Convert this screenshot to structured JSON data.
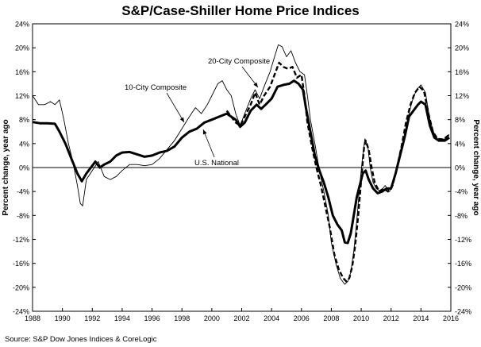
{
  "chart_data": {
    "type": "line",
    "title": "S&P/Case-Shiller Home Price Indices",
    "ylabel_left": "Percent change, year ago",
    "ylabel_right": "Percent change, year ago",
    "source": "Source: S&P Dow Jones Indices & CoreLogic",
    "xlim": [
      1988,
      2016
    ],
    "ylim": [
      -24,
      24
    ],
    "x_ticks": [
      "1988",
      "1990",
      "1992",
      "1994",
      "1996",
      "1998",
      "2000",
      "2002",
      "2004",
      "2006",
      "2008",
      "2010",
      "2012",
      "2014",
      "2016"
    ],
    "y_ticks": [
      "24%",
      "20%",
      "16%",
      "12%",
      "8%",
      "4%",
      "0%",
      "-4%",
      "-8%",
      "-12%",
      "-16%",
      "-20%",
      "-24%"
    ],
    "grid": false,
    "zero_line": true,
    "series": [
      {
        "name": "10-City Composite",
        "style": "thin",
        "color": "#000000",
        "points": [
          [
            1988.0,
            12.0
          ],
          [
            1988.4,
            10.5
          ],
          [
            1988.8,
            10.5
          ],
          [
            1989.2,
            11.0
          ],
          [
            1989.5,
            10.5
          ],
          [
            1989.8,
            11.3
          ],
          [
            1990.1,
            8.0
          ],
          [
            1990.4,
            4.0
          ],
          [
            1990.7,
            1.0
          ],
          [
            1991.0,
            -3.0
          ],
          [
            1991.2,
            -6.0
          ],
          [
            1991.35,
            -6.4
          ],
          [
            1991.6,
            -2.0
          ],
          [
            1992.0,
            -0.5
          ],
          [
            1992.4,
            1.0
          ],
          [
            1992.8,
            -1.5
          ],
          [
            1993.2,
            -2.0
          ],
          [
            1993.6,
            -1.5
          ],
          [
            1994.0,
            -0.5
          ],
          [
            1994.5,
            0.5
          ],
          [
            1995.0,
            0.5
          ],
          [
            1995.5,
            0.3
          ],
          [
            1996.0,
            0.5
          ],
          [
            1996.5,
            1.5
          ],
          [
            1997.0,
            3.0
          ],
          [
            1997.5,
            4.5
          ],
          [
            1998.0,
            6.5
          ],
          [
            1998.5,
            8.5
          ],
          [
            1998.9,
            10.0
          ],
          [
            1999.3,
            9.0
          ],
          [
            1999.7,
            10.5
          ],
          [
            2000.0,
            12.0
          ],
          [
            2000.4,
            14.0
          ],
          [
            2000.7,
            14.5
          ],
          [
            2001.0,
            13.0
          ],
          [
            2001.3,
            12.0
          ],
          [
            2001.6,
            9.0
          ],
          [
            2001.9,
            7.0
          ],
          [
            2002.2,
            9.0
          ],
          [
            2002.6,
            11.5
          ],
          [
            2002.9,
            13.0
          ],
          [
            2003.2,
            11.5
          ],
          [
            2003.5,
            13.5
          ],
          [
            2003.9,
            16.0
          ],
          [
            2004.2,
            18.5
          ],
          [
            2004.45,
            20.5
          ],
          [
            2004.7,
            20.2
          ],
          [
            2005.0,
            18.5
          ],
          [
            2005.3,
            19.5
          ],
          [
            2005.6,
            17.5
          ],
          [
            2005.9,
            16.0
          ],
          [
            2006.2,
            15.5
          ],
          [
            2006.4,
            12.0
          ],
          [
            2006.6,
            8.0
          ],
          [
            2006.9,
            4.0
          ],
          [
            2007.2,
            -0.5
          ],
          [
            2007.5,
            -4.0
          ],
          [
            2007.8,
            -8.0
          ],
          [
            2008.0,
            -12.5
          ],
          [
            2008.3,
            -16.0
          ],
          [
            2008.6,
            -18.5
          ],
          [
            2008.9,
            -19.5
          ],
          [
            2009.1,
            -19.0
          ],
          [
            2009.3,
            -17.5
          ],
          [
            2009.5,
            -14.0
          ],
          [
            2009.7,
            -9.0
          ],
          [
            2009.9,
            -3.0
          ],
          [
            2010.1,
            2.0
          ],
          [
            2010.25,
            4.8
          ],
          [
            2010.45,
            3.5
          ],
          [
            2010.6,
            0.0
          ],
          [
            2010.8,
            -2.5
          ],
          [
            2011.0,
            -3.5
          ],
          [
            2011.3,
            -4.0
          ],
          [
            2011.6,
            -3.0
          ],
          [
            2011.9,
            -4.0
          ],
          [
            2012.2,
            -2.0
          ],
          [
            2012.5,
            1.0
          ],
          [
            2012.8,
            4.0
          ],
          [
            2013.1,
            8.0
          ],
          [
            2013.4,
            11.0
          ],
          [
            2013.7,
            13.0
          ],
          [
            2014.0,
            13.8
          ],
          [
            2014.3,
            12.5
          ],
          [
            2014.6,
            8.0
          ],
          [
            2014.9,
            5.5
          ],
          [
            2015.2,
            4.5
          ],
          [
            2015.6,
            4.8
          ],
          [
            2015.9,
            5.5
          ]
        ]
      },
      {
        "name": "20-City Composite",
        "style": "dashed",
        "color": "#000000",
        "points": [
          [
            2001.0,
            9.5
          ],
          [
            2001.3,
            8.5
          ],
          [
            2001.6,
            7.5
          ],
          [
            2001.9,
            7.0
          ],
          [
            2002.2,
            8.5
          ],
          [
            2002.6,
            10.5
          ],
          [
            2002.9,
            12.5
          ],
          [
            2003.2,
            10.5
          ],
          [
            2003.5,
            12.0
          ],
          [
            2003.9,
            13.5
          ],
          [
            2004.2,
            15.5
          ],
          [
            2004.5,
            17.5
          ],
          [
            2004.8,
            16.8
          ],
          [
            2005.1,
            16.5
          ],
          [
            2005.4,
            16.8
          ],
          [
            2005.7,
            15.0
          ],
          [
            2006.0,
            15.5
          ],
          [
            2006.2,
            12.0
          ],
          [
            2006.4,
            7.5
          ],
          [
            2006.7,
            3.5
          ],
          [
            2007.0,
            0.0
          ],
          [
            2007.3,
            -3.0
          ],
          [
            2007.6,
            -6.5
          ],
          [
            2007.9,
            -10.0
          ],
          [
            2008.2,
            -14.5
          ],
          [
            2008.5,
            -17.0
          ],
          [
            2008.8,
            -18.5
          ],
          [
            2009.0,
            -19.0
          ],
          [
            2009.2,
            -18.5
          ],
          [
            2009.4,
            -16.5
          ],
          [
            2009.6,
            -13.0
          ],
          [
            2009.8,
            -8.0
          ],
          [
            2010.0,
            -2.0
          ],
          [
            2010.2,
            3.5
          ],
          [
            2010.3,
            4.5
          ],
          [
            2010.5,
            3.0
          ],
          [
            2010.7,
            0.0
          ],
          [
            2010.9,
            -2.5
          ],
          [
            2011.2,
            -4.0
          ],
          [
            2011.5,
            -3.5
          ],
          [
            2011.8,
            -4.0
          ],
          [
            2012.1,
            -3.0
          ],
          [
            2012.4,
            0.0
          ],
          [
            2012.7,
            3.5
          ],
          [
            2013.0,
            7.5
          ],
          [
            2013.3,
            10.5
          ],
          [
            2013.6,
            12.5
          ],
          [
            2013.9,
            13.5
          ],
          [
            2014.2,
            12.8
          ],
          [
            2014.5,
            9.0
          ],
          [
            2014.8,
            6.0
          ],
          [
            2015.1,
            4.8
          ],
          [
            2015.5,
            4.7
          ],
          [
            2015.9,
            5.5
          ]
        ]
      },
      {
        "name": "U.S. National",
        "style": "thick",
        "color": "#000000",
        "points": [
          [
            1988.0,
            7.6
          ],
          [
            1988.5,
            7.4
          ],
          [
            1989.0,
            7.4
          ],
          [
            1989.5,
            7.3
          ],
          [
            1989.8,
            6.0
          ],
          [
            1990.2,
            4.0
          ],
          [
            1990.6,
            1.5
          ],
          [
            1991.0,
            -1.0
          ],
          [
            1991.3,
            -2.3
          ],
          [
            1991.6,
            -1.0
          ],
          [
            1992.0,
            0.3
          ],
          [
            1992.2,
            1.0
          ],
          [
            1992.5,
            0.0
          ],
          [
            1992.8,
            0.5
          ],
          [
            1993.2,
            1.0
          ],
          [
            1993.6,
            2.0
          ],
          [
            1994.0,
            2.5
          ],
          [
            1994.5,
            2.6
          ],
          [
            1995.0,
            2.2
          ],
          [
            1995.5,
            1.8
          ],
          [
            1996.0,
            2.0
          ],
          [
            1996.5,
            2.5
          ],
          [
            1997.0,
            2.8
          ],
          [
            1997.5,
            3.5
          ],
          [
            1998.0,
            5.0
          ],
          [
            1998.5,
            6.0
          ],
          [
            1999.0,
            6.5
          ],
          [
            1999.5,
            7.5
          ],
          [
            2000.0,
            8.0
          ],
          [
            2000.5,
            8.5
          ],
          [
            2001.0,
            9.0
          ],
          [
            2001.3,
            8.5
          ],
          [
            2001.6,
            8.0
          ],
          [
            2001.9,
            6.8
          ],
          [
            2002.2,
            7.5
          ],
          [
            2002.6,
            9.5
          ],
          [
            2003.0,
            10.5
          ],
          [
            2003.3,
            9.8
          ],
          [
            2003.6,
            10.5
          ],
          [
            2004.0,
            11.5
          ],
          [
            2004.4,
            13.5
          ],
          [
            2004.8,
            13.8
          ],
          [
            2005.2,
            14.0
          ],
          [
            2005.5,
            14.5
          ],
          [
            2005.8,
            14.0
          ],
          [
            2006.1,
            13.0
          ],
          [
            2006.3,
            10.0
          ],
          [
            2006.6,
            6.0
          ],
          [
            2006.9,
            2.0
          ],
          [
            2007.2,
            -0.5
          ],
          [
            2007.5,
            -2.5
          ],
          [
            2007.8,
            -5.0
          ],
          [
            2008.1,
            -8.0
          ],
          [
            2008.4,
            -9.5
          ],
          [
            2008.7,
            -10.5
          ],
          [
            2008.9,
            -12.5
          ],
          [
            2009.1,
            -12.6
          ],
          [
            2009.3,
            -11.0
          ],
          [
            2009.5,
            -8.0
          ],
          [
            2009.7,
            -5.0
          ],
          [
            2009.9,
            -3.0
          ],
          [
            2010.1,
            -1.0
          ],
          [
            2010.3,
            -0.5
          ],
          [
            2010.5,
            -2.0
          ],
          [
            2010.8,
            -3.5
          ],
          [
            2011.1,
            -4.3
          ],
          [
            2011.4,
            -4.0
          ],
          [
            2011.7,
            -3.5
          ],
          [
            2012.0,
            -3.5
          ],
          [
            2012.3,
            -1.0
          ],
          [
            2012.6,
            2.0
          ],
          [
            2012.9,
            5.0
          ],
          [
            2013.2,
            8.5
          ],
          [
            2013.5,
            9.5
          ],
          [
            2013.8,
            10.5
          ],
          [
            2014.0,
            11.0
          ],
          [
            2014.3,
            10.5
          ],
          [
            2014.6,
            7.0
          ],
          [
            2014.9,
            5.0
          ],
          [
            2015.2,
            4.5
          ],
          [
            2015.6,
            4.5
          ],
          [
            2015.9,
            5.0
          ]
        ]
      }
    ],
    "annotations": [
      {
        "text": "10-City Composite",
        "series": "10-City Composite"
      },
      {
        "text": "20-City Composite",
        "series": "20-City Composite"
      },
      {
        "text": "U.S. National",
        "series": "U.S. National"
      }
    ]
  }
}
